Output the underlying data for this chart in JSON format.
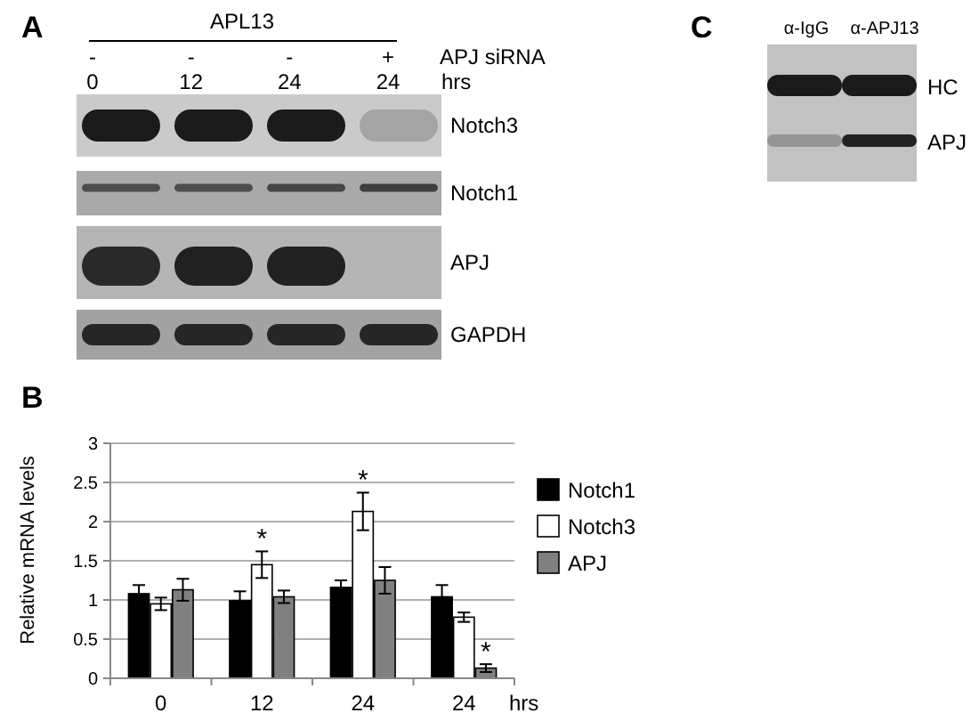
{
  "chart_data": [
    {
      "type": "other",
      "title": "A",
      "annotations": [
        "APL13",
        "-",
        "-",
        "-",
        "+",
        "APJ siRNA"
      ],
      "categories": [
        "0",
        "12",
        "24",
        "24"
      ],
      "xlabel": "hrs",
      "y_categories": [
        "Notch3",
        "Notch1",
        "APJ",
        "GAPDH"
      ]
    },
    {
      "type": "other",
      "title": "C",
      "categories": [
        "α-IgG",
        "α-APJ13"
      ],
      "y_categories": [
        "HC",
        "APJ"
      ]
    },
    {
      "type": "bar",
      "title": "B",
      "categories": [
        "0",
        "12",
        "24",
        "24"
      ],
      "xlabel": "hrs",
      "ylabel": "Relative mRNA levels",
      "ylim": [
        0,
        3
      ],
      "yticks": [
        0,
        0.5,
        1,
        1.5,
        2,
        2.5,
        3
      ],
      "grid": "y",
      "legend": "right",
      "series": [
        {
          "name": "Notch1",
          "color": "#000000",
          "values": [
            1.08,
            0.99,
            1.16,
            1.04
          ],
          "errors": [
            0.11,
            0.12,
            0.09,
            0.15
          ]
        },
        {
          "name": "Notch3",
          "color": "#ffffff",
          "values": [
            0.95,
            1.45,
            2.13,
            0.78
          ],
          "errors": [
            0.08,
            0.17,
            0.24,
            0.06
          ]
        },
        {
          "name": "APJ",
          "color": "#808080",
          "values": [
            1.13,
            1.04,
            1.25,
            0.13
          ],
          "errors": [
            0.14,
            0.08,
            0.17,
            0.05
          ]
        }
      ],
      "annotations": [
        "*",
        "*",
        "*"
      ]
    }
  ]
}
